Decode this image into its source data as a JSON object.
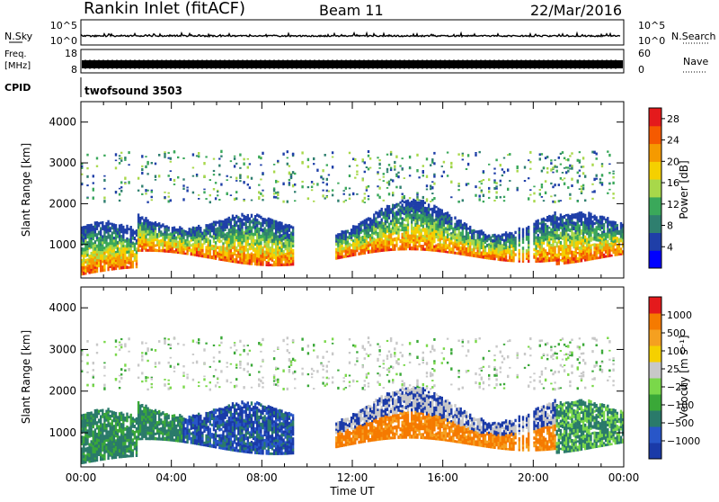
{
  "header": {
    "station": "Rankin Inlet (fitACF)",
    "beam": "Beam 11",
    "date": "22/Mar/2016"
  },
  "top_panels": {
    "nsky_label": "N.Sky",
    "nsearch_label": "N.Search",
    "nsky_ticks": [
      "10^5",
      "10^0"
    ],
    "nsearch_ticks": [
      "10^5",
      "10^0"
    ],
    "freq_label": "Freq.",
    "freq_unit": "[MHz]",
    "freq_ticks": [
      "18",
      "8"
    ],
    "nave_label": "Nave",
    "nave_ticks": [
      "60",
      "0"
    ],
    "cpid_label": "CPID",
    "cpid_value": "twofsound 3503"
  },
  "colors": {
    "power": [
      "#0000ff",
      "#1f3fa8",
      "#2f7f6f",
      "#3aa85a",
      "#a8d84a",
      "#f5d000",
      "#f59a00",
      "#f55a00",
      "#e41a1c"
    ],
    "velocity": [
      "#1a3aa8",
      "#2856c8",
      "#2a7a6a",
      "#3aa838",
      "#7ad84a",
      "#c8c8c8",
      "#f5d000",
      "#f5a020",
      "#f57a00",
      "#e41a1c"
    ]
  },
  "chart_data": [
    {
      "type": "heatmap",
      "title": "Power",
      "xlabel": "Time UT",
      "ylabel": "Slant Range [km]",
      "x_ticks": [
        "00:00",
        "04:00",
        "08:00",
        "12:00",
        "16:00",
        "20:00",
        "00:00"
      ],
      "y_ticks": [
        1000,
        2000,
        3000,
        4000
      ],
      "ylim": [
        180,
        4500
      ],
      "xlim_hours": [
        0,
        24
      ],
      "colorbar_label": "Power [dB]",
      "colorbar_ticks": [
        4,
        8,
        12,
        16,
        20,
        24,
        28
      ],
      "colorbar_range": [
        0,
        30
      ]
    },
    {
      "type": "heatmap",
      "title": "Velocity",
      "xlabel": "Time UT",
      "ylabel": "Slant Range [km]",
      "x_ticks": [
        "00:00",
        "04:00",
        "08:00",
        "12:00",
        "16:00",
        "20:00",
        "00:00"
      ],
      "y_ticks": [
        1000,
        2000,
        3000,
        4000
      ],
      "ylim": [
        180,
        4500
      ],
      "xlim_hours": [
        0,
        24
      ],
      "colorbar_label": "Velocity [m s⁻¹]",
      "colorbar_ticks": [
        "1000",
        "500",
        "100",
        "25",
        "−25",
        "−100",
        "−500",
        "−1000"
      ]
    }
  ]
}
